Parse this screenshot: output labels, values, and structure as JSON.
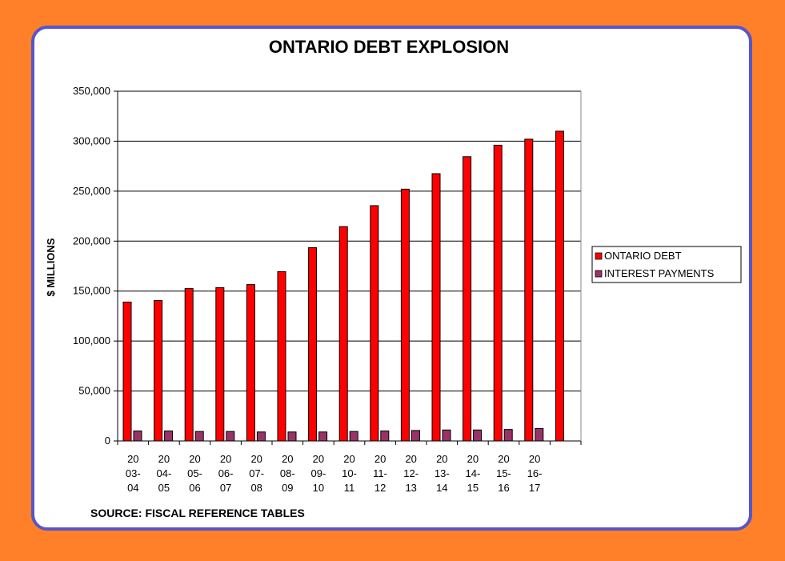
{
  "colors": {
    "background": "#FF8028",
    "card_border": "#5555CC",
    "debt_bar": "#FF0000",
    "interest_bar": "#993366"
  },
  "source_note": "SOURCE: FISCAL REFERENCE TABLES",
  "chart_data": {
    "type": "bar",
    "title": "ONTARIO DEBT EXPLOSION",
    "xlabel": "",
    "ylabel": "$ MILLIONS",
    "ylim": [
      0,
      350000
    ],
    "yticks": [
      0,
      50000,
      100000,
      150000,
      200000,
      250000,
      300000,
      350000
    ],
    "ytick_labels": [
      "0",
      "50,000",
      "100,000",
      "150,000",
      "200,000",
      "250,000",
      "300,000",
      "350,000"
    ],
    "grid": true,
    "legend_position": "right",
    "categories": [
      [
        "20",
        "03-",
        "04"
      ],
      [
        "20",
        "04-",
        "05"
      ],
      [
        "20",
        "05-",
        "06"
      ],
      [
        "20",
        "06-",
        "07"
      ],
      [
        "20",
        "07-",
        "08"
      ],
      [
        "20",
        "08-",
        "09"
      ],
      [
        "20",
        "09-",
        "10"
      ],
      [
        "20",
        "10-",
        "11"
      ],
      [
        "20",
        "11-",
        "12"
      ],
      [
        "20",
        "12-",
        "13"
      ],
      [
        "20",
        "13-",
        "14"
      ],
      [
        "20",
        "14-",
        "15"
      ],
      [
        "20",
        "15-",
        "16"
      ],
      [
        "20",
        "16-",
        "17"
      ],
      []
    ],
    "series": [
      {
        "name": "ONTARIO DEBT",
        "color": "#FF0000",
        "values": [
          139000,
          140500,
          152500,
          153500,
          156500,
          169500,
          193500,
          214500,
          235500,
          252000,
          267500,
          284500,
          296000,
          302000,
          310000
        ]
      },
      {
        "name": "INTEREST PAYMENTS",
        "color": "#993366",
        "values": [
          10000,
          10000,
          9500,
          9500,
          9000,
          9000,
          9000,
          9500,
          10000,
          10500,
          11000,
          11000,
          11500,
          12500,
          null
        ]
      }
    ]
  }
}
